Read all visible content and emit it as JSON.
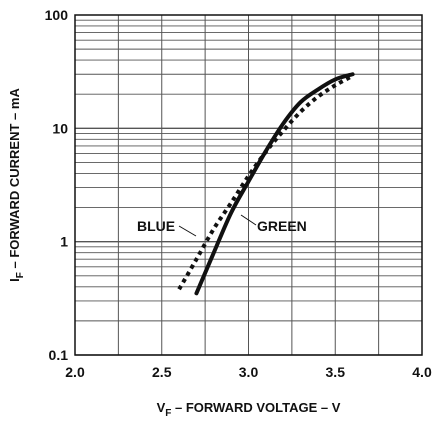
{
  "chart_data": {
    "type": "line",
    "title": "",
    "xlabel": {
      "base": "V",
      "sub": "F",
      "rest": " – FORWARD VOLTAGE – V"
    },
    "ylabel": {
      "base": "I",
      "sub": "F",
      "rest": " – FORWARD CURRENT – mA"
    },
    "xscale": "linear",
    "yscale": "log",
    "xlim": [
      2.0,
      4.0
    ],
    "ylim": [
      0.1,
      100
    ],
    "xticks": [
      2.0,
      2.5,
      3.0,
      3.5,
      4.0
    ],
    "xtick_labels": [
      "2.0",
      "2.5",
      "3.0",
      "3.5",
      "4.0"
    ],
    "yticks": [
      0.1,
      1,
      10,
      100
    ],
    "ytick_labels": [
      "0.1",
      "1",
      "10",
      "100"
    ],
    "grid": true,
    "legend": "none",
    "series": [
      {
        "name": "BLUE",
        "style": "dotted",
        "color": "#111111",
        "x": [
          2.6,
          2.7,
          2.8,
          2.9,
          3.0,
          3.1,
          3.2,
          3.3,
          3.4,
          3.5,
          3.6
        ],
        "y": [
          0.38,
          0.7,
          1.3,
          2.2,
          3.8,
          6.2,
          9.5,
          14,
          19,
          24,
          29
        ]
      },
      {
        "name": "GREEN",
        "style": "solid",
        "color": "#111111",
        "x": [
          2.7,
          2.8,
          2.9,
          3.0,
          3.1,
          3.2,
          3.3,
          3.4,
          3.5,
          3.6
        ],
        "y": [
          0.35,
          0.8,
          1.8,
          3.4,
          6.3,
          11,
          17,
          22,
          27,
          30
        ]
      }
    ]
  }
}
